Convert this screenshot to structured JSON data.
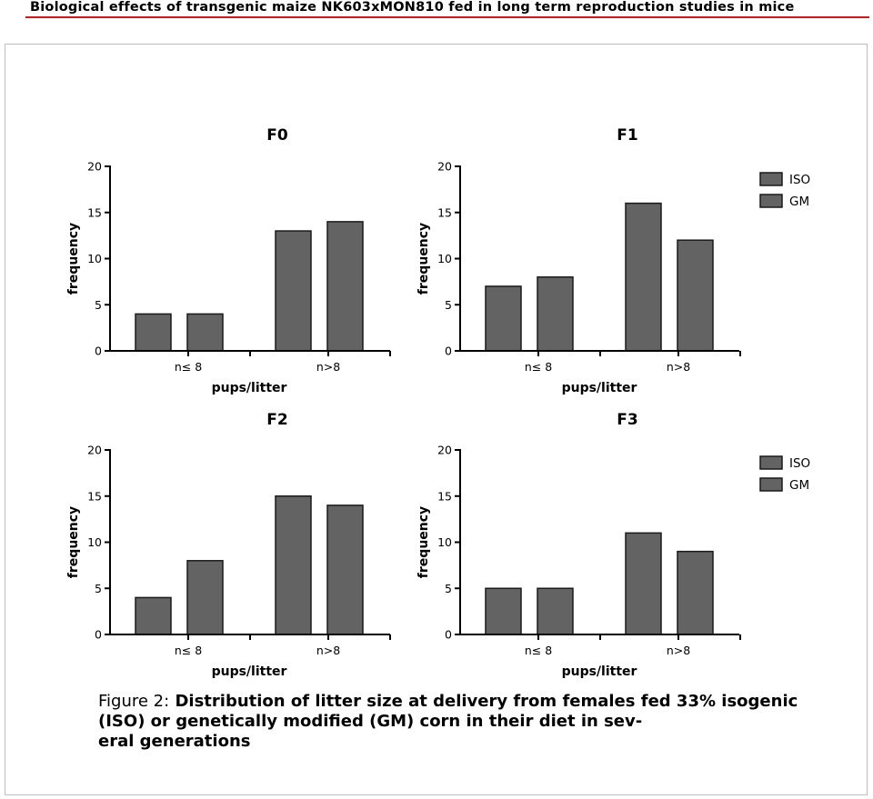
{
  "header": {
    "running_title": "Biological effects of transgenic maize NK603xMON810 fed in long term reproduction studies in mice",
    "rule_color": "#d0191b"
  },
  "caption": {
    "label": "Figure 2:",
    "text": "Distribution of litter size at delivery from females fed 33% isogenic (ISO) or genetically modified (GM) corn in their diet in sev-\neral generations"
  },
  "colors": {
    "bar_fill": "#636363",
    "axis": "#000000"
  },
  "chart_data": [
    {
      "type": "bar",
      "title": "F0",
      "xlabel": "pups/litter",
      "ylabel": "frequency",
      "ylim": [
        0,
        20
      ],
      "yticks": [
        "0",
        "5",
        "10",
        "15",
        "20"
      ],
      "categories": [
        "n≤ 8",
        "n>8"
      ],
      "series": [
        {
          "name": "ISO",
          "values": [
            4,
            13
          ]
        },
        {
          "name": "GM",
          "values": [
            4,
            14
          ]
        }
      ],
      "legend": null
    },
    {
      "type": "bar",
      "title": "F1",
      "xlabel": "pups/litter",
      "ylabel": "frequency",
      "ylim": [
        0,
        20
      ],
      "yticks": [
        "0",
        "5",
        "10",
        "15",
        "20"
      ],
      "categories": [
        "n≤ 8",
        "n>8"
      ],
      "series": [
        {
          "name": "ISO",
          "values": [
            7,
            16
          ]
        },
        {
          "name": "GM",
          "values": [
            8,
            12
          ]
        }
      ],
      "legend": "top-right"
    },
    {
      "type": "bar",
      "title": "F2",
      "xlabel": "pups/litter",
      "ylabel": "frequency",
      "ylim": [
        0,
        20
      ],
      "yticks": [
        "0",
        "5",
        "10",
        "15",
        "20"
      ],
      "categories": [
        "n≤ 8",
        "n>8"
      ],
      "series": [
        {
          "name": "ISO",
          "values": [
            4,
            15
          ]
        },
        {
          "name": "GM",
          "values": [
            8,
            14
          ]
        }
      ],
      "legend": null
    },
    {
      "type": "bar",
      "title": "F3",
      "xlabel": "pups/litter",
      "ylabel": "frequency",
      "ylim": [
        0,
        20
      ],
      "yticks": [
        "0",
        "5",
        "10",
        "15",
        "20"
      ],
      "categories": [
        "n≤ 8",
        "n>8"
      ],
      "series": [
        {
          "name": "ISO",
          "values": [
            5,
            11
          ]
        },
        {
          "name": "GM",
          "values": [
            5,
            9
          ]
        }
      ],
      "legend": "top-right"
    }
  ]
}
